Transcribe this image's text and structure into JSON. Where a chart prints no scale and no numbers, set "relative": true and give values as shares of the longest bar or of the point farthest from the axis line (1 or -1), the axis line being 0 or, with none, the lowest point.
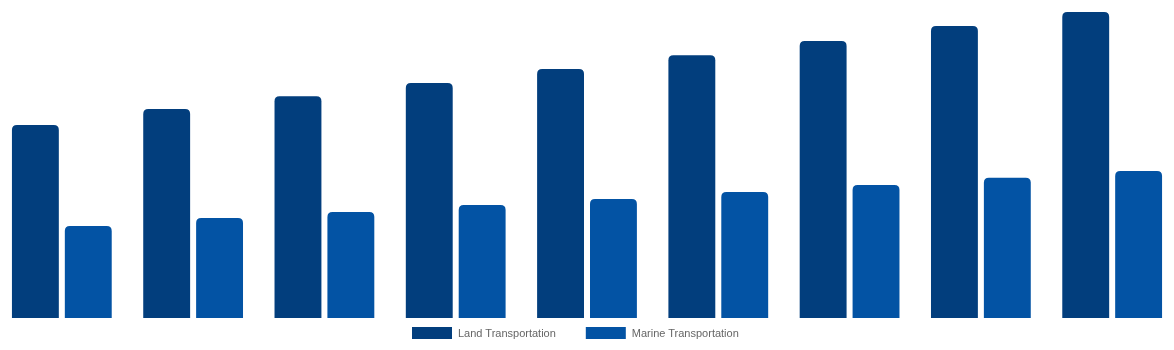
{
  "chart_data": {
    "type": "bar",
    "relative": true,
    "categories": [
      null,
      null,
      null,
      null,
      null,
      null,
      null,
      null,
      null
    ],
    "series": [
      {
        "name": "Land Transportation",
        "color": "#023e7d",
        "values": [
          0.631,
          0.683,
          0.725,
          0.768,
          0.814,
          0.859,
          0.905,
          0.954,
          1
        ]
      },
      {
        "name": "Marine Transportation",
        "color": "#0353a4",
        "values": [
          0.301,
          0.327,
          0.346,
          0.369,
          0.389,
          0.412,
          0.435,
          0.458,
          0.48
        ]
      }
    ],
    "legend": "bottom"
  }
}
